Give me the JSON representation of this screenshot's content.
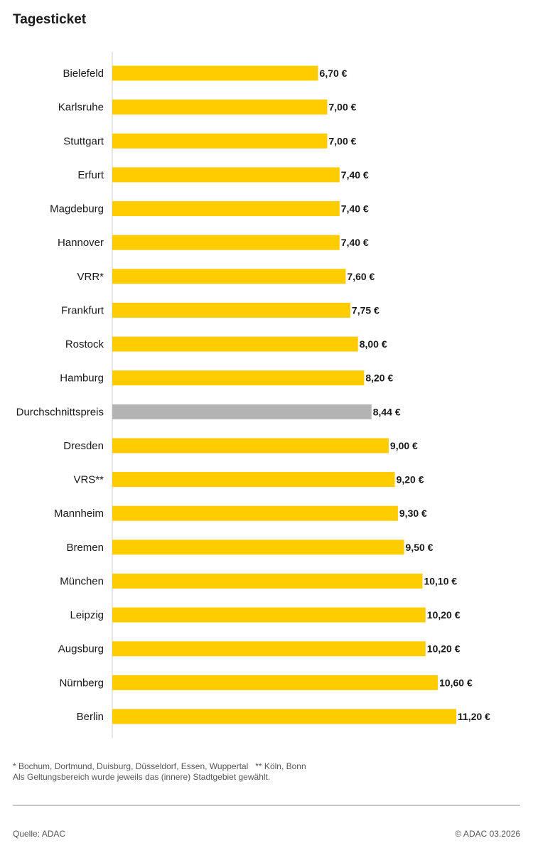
{
  "chart_data": {
    "type": "bar",
    "orientation": "horizontal",
    "title": "Tagesticket",
    "unit": "€",
    "categories": [
      "Bielefeld",
      "Karlsruhe",
      "Stuttgart",
      "Erfurt",
      "Magdeburg",
      "Hannover",
      "VRR*",
      "Frankfurt",
      "Rostock",
      "Hamburg",
      "Durchschnittspreis",
      "Dresden",
      "VRS**",
      "Mannheim",
      "Bremen",
      "München",
      "Leipzig",
      "Augsburg",
      "Nürnberg",
      "Berlin"
    ],
    "values": [
      6.7,
      7.0,
      7.0,
      7.4,
      7.4,
      7.4,
      7.6,
      7.75,
      8.0,
      8.2,
      8.44,
      9.0,
      9.2,
      9.3,
      9.5,
      10.1,
      10.2,
      10.2,
      10.6,
      11.2
    ],
    "labels": [
      "6,70 €",
      "7,00 €",
      "7,00 €",
      "7,40 €",
      "7,40 €",
      "7,40 €",
      "7,60 €",
      "7,75 €",
      "8,00 €",
      "8,20 €",
      "8,44 €",
      "9,00 €",
      "9,20 €",
      "9,30 €",
      "9,50 €",
      "10,10 €",
      "10,20 €",
      "10,20 €",
      "10,60 €",
      "11,20 €"
    ],
    "highlight_category": "Durchschnittspreis",
    "colors": {
      "bar": "#ffcc00",
      "highlight": "#b3b3b3"
    },
    "xlim": [
      0,
      11.2
    ],
    "grid": false
  },
  "notes": {
    "footnote1": "* Bochum, Dortmund, Duisburg, Düsseldorf, Essen, Wuppertal   ** Köln, Bonn",
    "footnote2": "Als Geltungsbereich wurde jeweils das (innere) Stadtgebiet gewählt.",
    "source": "Quelle: ADAC",
    "copyright": "© ADAC 03.2026"
  }
}
